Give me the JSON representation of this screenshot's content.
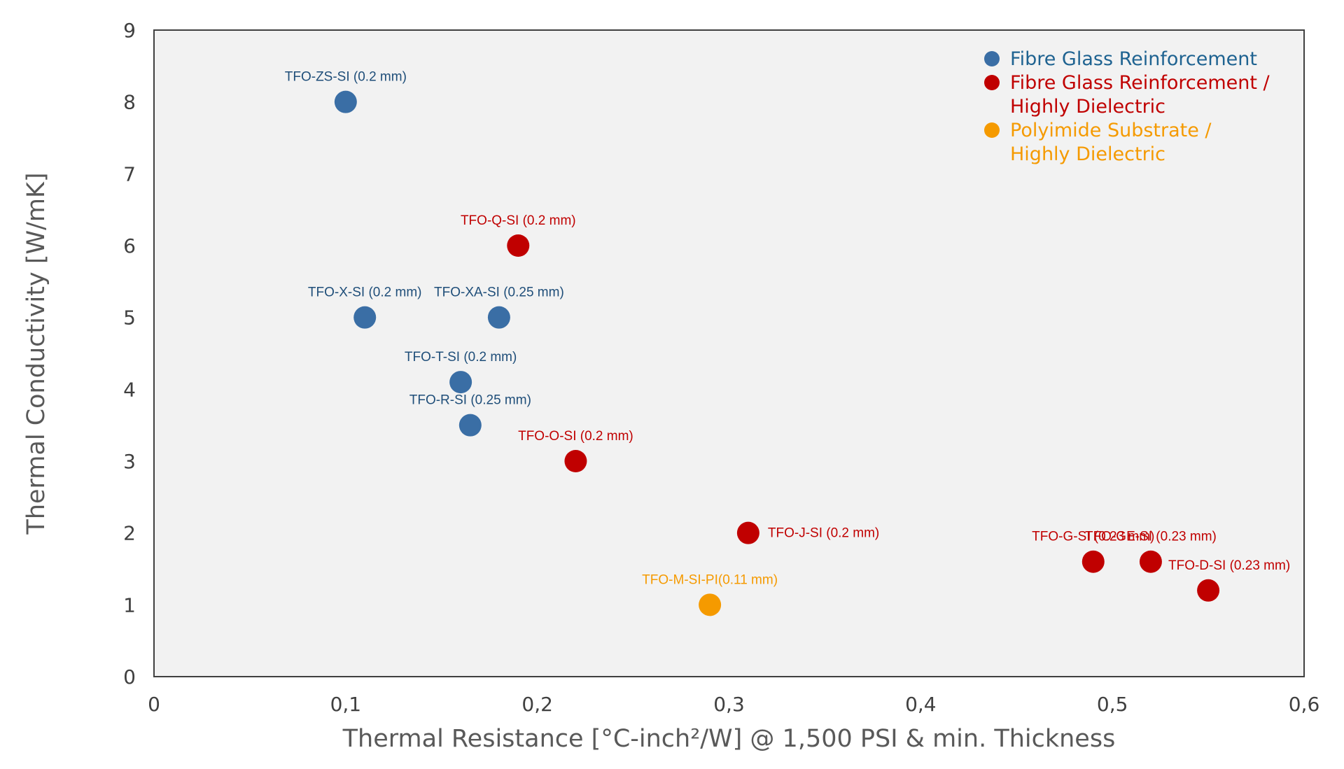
{
  "chart_data": {
    "type": "scatter",
    "title": "",
    "xlabel": "Thermal Resistance [°C-inch²/W] @ 1,500 PSI & min. Thickness",
    "ylabel": "Thermal Conductivity [W/mK]",
    "xlim": [
      0,
      0.6
    ],
    "ylim": [
      0,
      9
    ],
    "x_ticks": [
      "0",
      "0,1",
      "0,2",
      "0,3",
      "0,4",
      "0,5",
      "0,6"
    ],
    "y_ticks": [
      "0",
      "1",
      "2",
      "3",
      "4",
      "5",
      "6",
      "7",
      "8",
      "9"
    ],
    "grid": false,
    "legend_position": "top-right",
    "series": [
      {
        "name": "Fibre Glass Reinforcement",
        "color": "#3a6ea5",
        "points": [
          {
            "x": 0.1,
            "y": 8.0,
            "label": "TFO-ZS-SI (0.2 mm)"
          },
          {
            "x": 0.11,
            "y": 5.0,
            "label": "TFO-X-SI (0.2 mm)"
          },
          {
            "x": 0.18,
            "y": 5.0,
            "label": "TFO-XA-SI (0.25 mm)"
          },
          {
            "x": 0.16,
            "y": 4.1,
            "label": "TFO-T-SI (0.2 mm)"
          },
          {
            "x": 0.165,
            "y": 3.5,
            "label": "TFO-R-SI (0.25 mm)"
          }
        ]
      },
      {
        "name": "Fibre Glass Reinforcement / Highly Dielectric",
        "legend_lines": [
          "Fibre Glass Reinforcement /",
          "Highly Dielectric"
        ],
        "color": "#c00000",
        "points": [
          {
            "x": 0.19,
            "y": 6.0,
            "label": "TFO-Q-SI (0.2 mm)"
          },
          {
            "x": 0.22,
            "y": 3.0,
            "label": "TFO-O-SI (0.2 mm)"
          },
          {
            "x": 0.31,
            "y": 2.0,
            "label": "TFO-J-SI (0.2 mm)"
          },
          {
            "x": 0.49,
            "y": 1.6,
            "label": "TFO-G-SI (0.23 mm)"
          },
          {
            "x": 0.52,
            "y": 1.6,
            "label": "TFO-GE-SI (0.23 mm)"
          },
          {
            "x": 0.55,
            "y": 1.2,
            "label": "TFO-D-SI (0.23 mm)"
          }
        ]
      },
      {
        "name": "Polyimide Substrate / Highly Dielectric",
        "legend_lines": [
          "Polyimide Substrate /",
          "Highly Dielectric"
        ],
        "color": "#f59a00",
        "points": [
          {
            "x": 0.29,
            "y": 1.0,
            "label": "TFO-M-SI-PI(0.11 mm)"
          }
        ]
      }
    ]
  },
  "colors": {
    "plot_background": "#f2f2f2",
    "axis_line": "#404040",
    "tick_text": "#404040",
    "axis_title": "#595959",
    "fibre_glass_label": "#1f4e79",
    "dielectric_label": "#c00000",
    "polyimide_label": "#f59a00",
    "fibre_glass_legend_text": "#1f6391"
  }
}
